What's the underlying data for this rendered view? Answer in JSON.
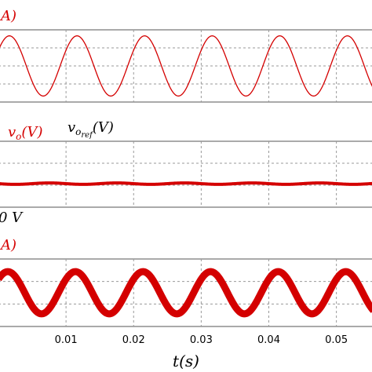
{
  "colors": {
    "series_red": "#d40000",
    "text_black": "#000000",
    "grid": "#9a9a9a",
    "frame": "#555555"
  },
  "panels": [
    {
      "label_text": "A)"
    },
    {
      "label_text": "v_o(V)",
      "label_ref": "v_{o_{ref}}(V)",
      "bottom_label": "0 V"
    },
    {
      "label_text": "A)"
    }
  ],
  "x_axis": {
    "label": "t(s)",
    "ticks": [
      "0.01",
      "0.02",
      "0.03",
      "0.04",
      "0.05"
    ]
  },
  "chart_data": [
    {
      "type": "line",
      "title": "",
      "series": [
        {
          "kind": "sine",
          "frequency_hz": 100,
          "amplitude": 1.0,
          "color": "#d40000",
          "line": "thin"
        }
      ],
      "xlim": [
        0.0,
        0.0555
      ],
      "ylim": [
        -1.2,
        1.2
      ],
      "grid": true
    },
    {
      "type": "line",
      "title": "",
      "series": [
        {
          "name": "v_o(V)",
          "kind": "flat-with-ripple",
          "value": 0.0,
          "color": "#d40000",
          "line": "thick"
        },
        {
          "name": "v_{o_{ref}}(V)",
          "kind": "flat",
          "value": 0.0,
          "color": "#000000",
          "line": "thin"
        }
      ],
      "xlim": [
        0.0,
        0.0555
      ],
      "ylim": [
        -1.0,
        1.0
      ],
      "grid": true
    },
    {
      "type": "line",
      "title": "",
      "series": [
        {
          "kind": "sine",
          "frequency_hz": 100,
          "amplitude": 1.0,
          "color": "#d40000",
          "line": "thick-band"
        }
      ],
      "xlim": [
        0.0,
        0.0555
      ],
      "ylim": [
        -1.6,
        1.6
      ],
      "grid": true,
      "xlabel": "t(s)",
      "xticks": [
        0.01,
        0.02,
        0.03,
        0.04,
        0.05
      ]
    }
  ]
}
